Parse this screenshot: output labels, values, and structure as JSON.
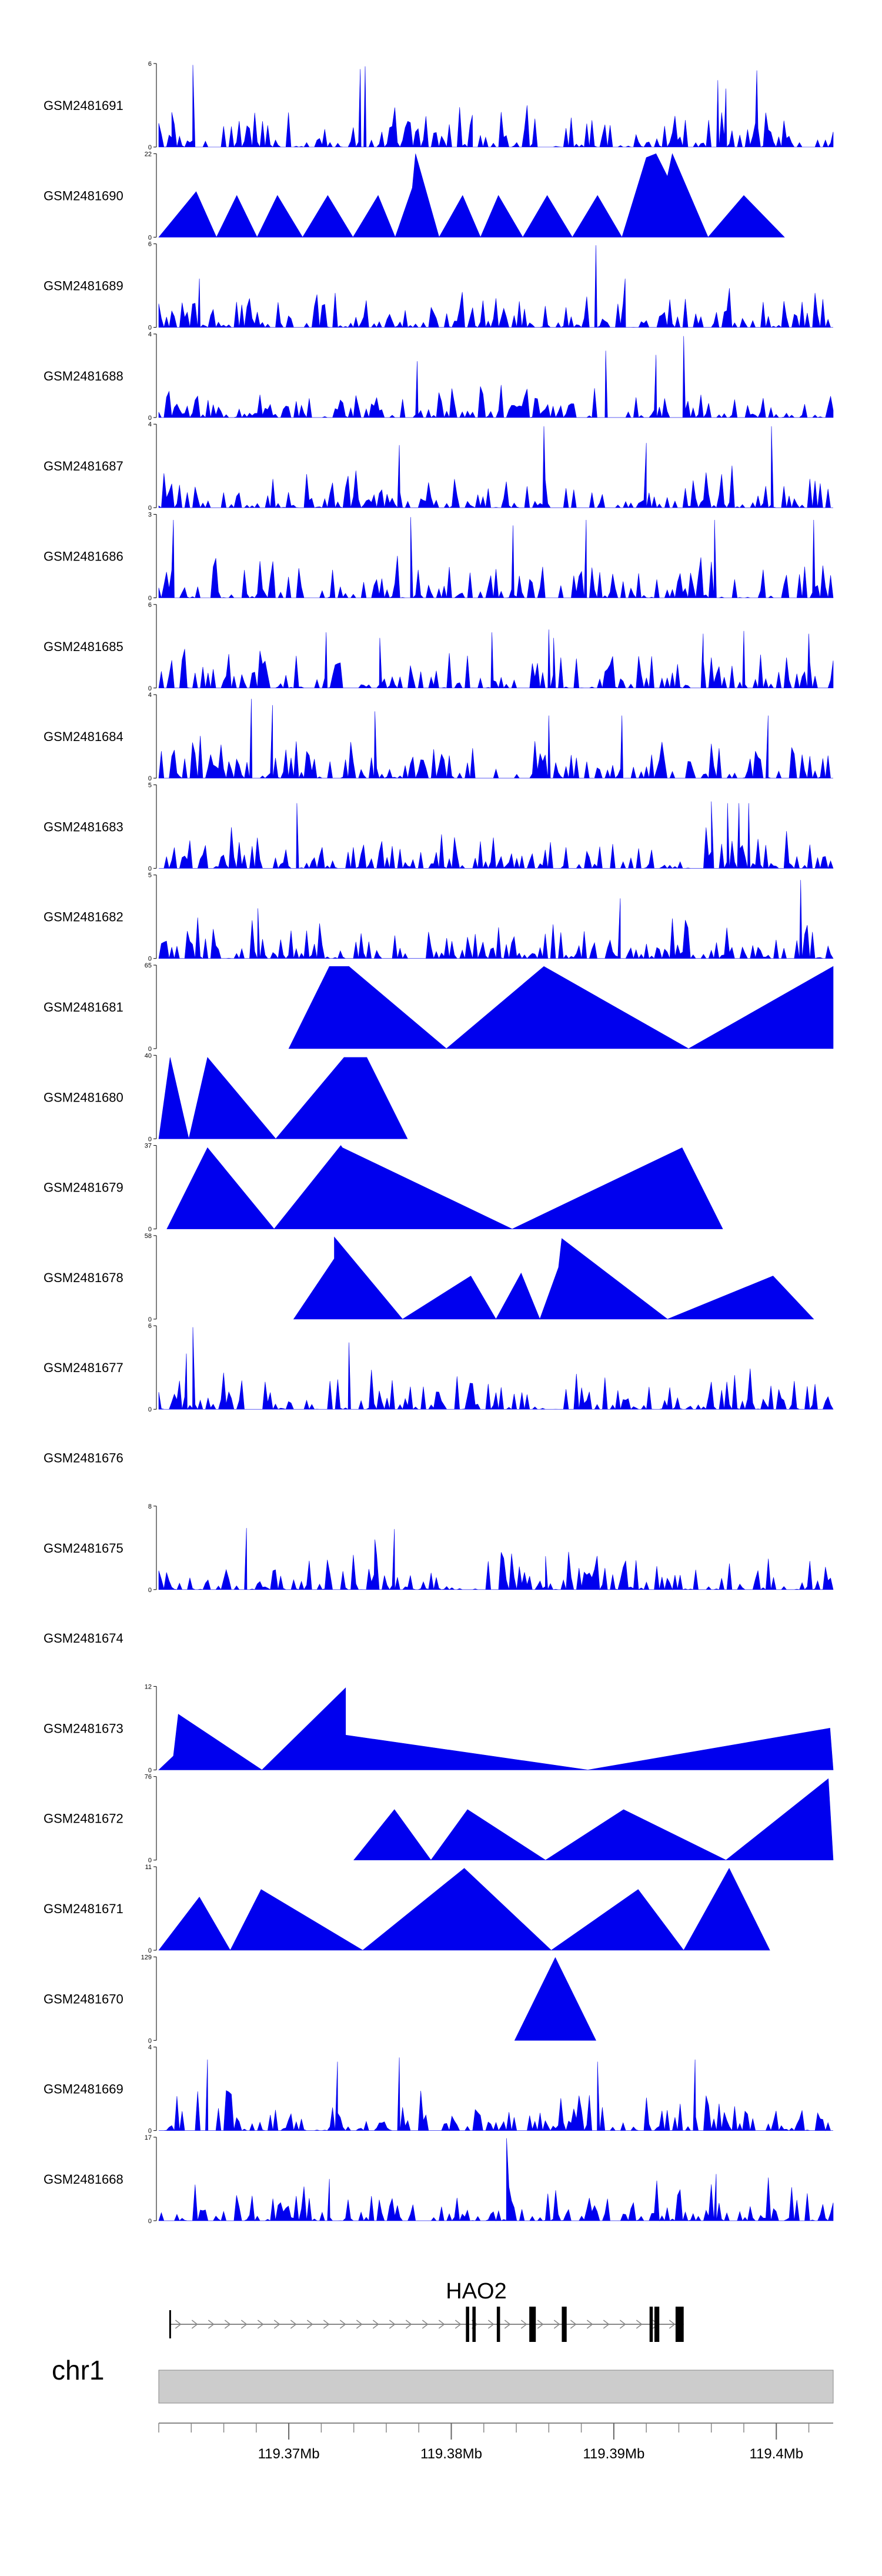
{
  "colors": {
    "signal": "#0000ee",
    "ideogram_fill": "#cccccc",
    "ideogram_stroke": "#888888"
  },
  "chart_data": {
    "type": "area",
    "title": "",
    "xlabel": "",
    "ylabel": "",
    "xlim": [
      119.362,
      119.4035
    ],
    "x_ticks": [
      {
        "value": 119.37,
        "label": "119.37Mb"
      },
      {
        "value": 119.38,
        "label": "119.38Mb"
      },
      {
        "value": 119.39,
        "label": "119.39Mb"
      },
      {
        "value": 119.4,
        "label": "119.4Mb"
      }
    ],
    "chromosome": "chr1",
    "gene": {
      "name": "HAO2",
      "start": 119.3627,
      "end": 119.3943,
      "exons": [
        [
          119.3809,
          119.3811
        ],
        [
          119.3813,
          119.3815
        ],
        [
          119.3828,
          119.383
        ],
        [
          119.3848,
          119.3852
        ],
        [
          119.3868,
          119.3871
        ],
        [
          119.3922,
          119.3924
        ],
        [
          119.3925,
          119.3928
        ],
        [
          119.3938,
          119.3943
        ]
      ]
    },
    "tracks": [
      {
        "name": "GSM2481691",
        "ymax": 6,
        "style": "dense",
        "peaks": [
          [
            119.3628,
            2.5
          ],
          [
            119.3641,
            5.9
          ],
          [
            119.3744,
            5.6
          ],
          [
            119.3747,
            5.8
          ],
          [
            119.3813,
            2.3
          ],
          [
            119.3964,
            4.8
          ],
          [
            119.3969,
            4.2
          ],
          [
            119.3988,
            5.5
          ]
        ]
      },
      {
        "name": "GSM2481690",
        "ymax": 22,
        "style": "sparse",
        "peaks": [
          [
            119.3643,
            12.0
          ],
          [
            119.3668,
            11.0
          ],
          [
            119.3693,
            11.0
          ],
          [
            119.3724,
            11.0
          ],
          [
            119.3755,
            11.0
          ],
          [
            119.3776,
            13.0
          ],
          [
            119.3778,
            22.0
          ],
          [
            119.3807,
            11.0
          ],
          [
            119.3829,
            11.0
          ],
          [
            119.3859,
            11.0
          ],
          [
            119.389,
            11.0
          ],
          [
            119.392,
            21.0
          ],
          [
            119.3926,
            22.0
          ],
          [
            119.3933,
            16.0
          ],
          [
            119.3936,
            22.0
          ],
          [
            119.398,
            11.0
          ]
        ]
      },
      {
        "name": "GSM2481689",
        "ymax": 6,
        "style": "dense",
        "peaks": [
          [
            119.3889,
            5.9
          ],
          [
            119.3907,
            3.5
          ],
          [
            119.3645,
            3.5
          ]
        ]
      },
      {
        "name": "GSM2481688",
        "ymax": 4,
        "style": "dense",
        "peaks": [
          [
            119.3779,
            2.7
          ],
          [
            119.3943,
            3.9
          ],
          [
            119.3895,
            3.2
          ],
          [
            119.3926,
            3.0
          ]
        ]
      },
      {
        "name": "GSM2481687",
        "ymax": 4,
        "style": "dense",
        "peaks": [
          [
            119.3857,
            3.9
          ],
          [
            119.3997,
            3.9
          ],
          [
            119.392,
            3.1
          ],
          [
            119.3768,
            3.0
          ]
        ]
      },
      {
        "name": "GSM2481686",
        "ymax": 3,
        "style": "dense",
        "peaks": [
          [
            119.3775,
            2.9
          ],
          [
            119.3629,
            2.8
          ],
          [
            119.3883,
            2.8
          ],
          [
            119.3962,
            2.8
          ],
          [
            119.4023,
            2.8
          ],
          [
            119.3838,
            2.6
          ]
        ]
      },
      {
        "name": "GSM2481685",
        "ymax": 6,
        "style": "dense",
        "peaks": [
          [
            119.3723,
            4.0
          ],
          [
            119.3756,
            3.6
          ],
          [
            119.3825,
            4.0
          ],
          [
            119.386,
            4.2
          ],
          [
            119.3863,
            3.6
          ],
          [
            119.3955,
            3.9
          ],
          [
            119.398,
            4.1
          ],
          [
            119.402,
            3.9
          ]
        ]
      },
      {
        "name": "GSM2481684",
        "ymax": 4,
        "style": "dense",
        "peaks": [
          [
            119.3677,
            3.8
          ],
          [
            119.369,
            3.5
          ],
          [
            119.3753,
            3.2
          ],
          [
            119.386,
            3.0
          ],
          [
            119.3905,
            3.0
          ],
          [
            119.3995,
            3.0
          ]
        ]
      },
      {
        "name": "GSM2481683",
        "ymax": 5,
        "style": "dense",
        "peaks": [
          [
            119.3705,
            3.9
          ],
          [
            119.396,
            4.0
          ],
          [
            119.397,
            3.9
          ],
          [
            119.3977,
            3.9
          ],
          [
            119.3983,
            3.9
          ]
        ]
      },
      {
        "name": "GSM2481682",
        "ymax": 5,
        "style": "dense",
        "peaks": [
          [
            119.3681,
            3.0
          ],
          [
            119.3904,
            3.6
          ],
          [
            119.4015,
            4.7
          ]
        ]
      },
      {
        "name": "GSM2481681",
        "ymax": 65,
        "style": "sparse",
        "peaks": [
          [
            119.3725,
            64.0
          ],
          [
            119.3737,
            64.0
          ],
          [
            119.3857,
            64.0
          ],
          [
            119.4035,
            64.0
          ]
        ]
      },
      {
        "name": "GSM2481680",
        "ymax": 40,
        "style": "sparse",
        "peaks": [
          [
            119.3627,
            39.0
          ],
          [
            119.365,
            39.0
          ],
          [
            119.3734,
            39.0
          ],
          [
            119.3748,
            39.0
          ]
        ]
      },
      {
        "name": "GSM2481679",
        "ymax": 37,
        "style": "sparse",
        "peaks": [
          [
            119.365,
            36.0
          ],
          [
            119.3732,
            37.0
          ],
          [
            119.3733,
            36.0
          ],
          [
            119.3942,
            36.0
          ]
        ]
      },
      {
        "name": "GSM2481678",
        "ymax": 58,
        "style": "sparse",
        "peaks": [
          [
            119.3728,
            42.0
          ],
          [
            119.3728,
            57.0
          ],
          [
            119.3812,
            30.0
          ],
          [
            119.3843,
            32.0
          ],
          [
            119.3866,
            36.0
          ],
          [
            119.3868,
            56.0
          ],
          [
            119.3998,
            30.0
          ]
        ]
      },
      {
        "name": "GSM2481677",
        "ymax": 6,
        "style": "dense",
        "peaks": [
          [
            119.3641,
            5.9
          ],
          [
            119.3637,
            4.0
          ],
          [
            119.3737,
            4.8
          ]
        ]
      },
      {
        "name": "GSM2481676",
        "ymax": null,
        "style": "empty",
        "peaks": []
      },
      {
        "name": "GSM2481675",
        "ymax": 8,
        "style": "dense",
        "peaks": [
          [
            119.3674,
            5.9
          ],
          [
            119.3765,
            5.8
          ],
          [
            119.3753,
            4.8
          ],
          [
            119.3858,
            3.2
          ]
        ]
      },
      {
        "name": "GSM2481674",
        "ymax": null,
        "style": "empty",
        "peaks": []
      },
      {
        "name": "GSM2481673",
        "ymax": 12,
        "style": "sparse",
        "peaks": [
          [
            119.3629,
            2.0
          ],
          [
            119.3632,
            8.0
          ],
          [
            119.3735,
            11.8
          ],
          [
            119.3735,
            5.0
          ],
          [
            119.4033,
            6.0
          ]
        ]
      },
      {
        "name": "GSM2481672",
        "ymax": 76,
        "style": "sparse",
        "peaks": [
          [
            119.3765,
            46.0
          ],
          [
            119.381,
            46.0
          ],
          [
            119.3906,
            46.0
          ],
          [
            119.4032,
            74.0
          ]
        ]
      },
      {
        "name": "GSM2481671",
        "ymax": 11,
        "style": "sparse",
        "peaks": [
          [
            119.3645,
            7.0
          ],
          [
            119.3683,
            8.0
          ],
          [
            119.3808,
            10.8
          ],
          [
            119.3971,
            10.8
          ],
          [
            119.3915,
            8.0
          ]
        ]
      },
      {
        "name": "GSM2481670",
        "ymax": 129,
        "style": "sparse",
        "peaks": [
          [
            119.3864,
            128.0
          ]
        ]
      },
      {
        "name": "GSM2481669",
        "ymax": 4,
        "style": "dense",
        "peaks": [
          [
            119.365,
            3.4
          ],
          [
            119.373,
            3.3
          ],
          [
            119.3768,
            3.5
          ],
          [
            119.389,
            3.3
          ],
          [
            119.395,
            3.4
          ]
        ]
      },
      {
        "name": "GSM2481668",
        "ymax": 17,
        "style": "dense",
        "peaks": [
          [
            119.3834,
            16.8
          ],
          [
            119.3963,
            9.5
          ],
          [
            119.3725,
            8.5
          ]
        ]
      }
    ]
  }
}
